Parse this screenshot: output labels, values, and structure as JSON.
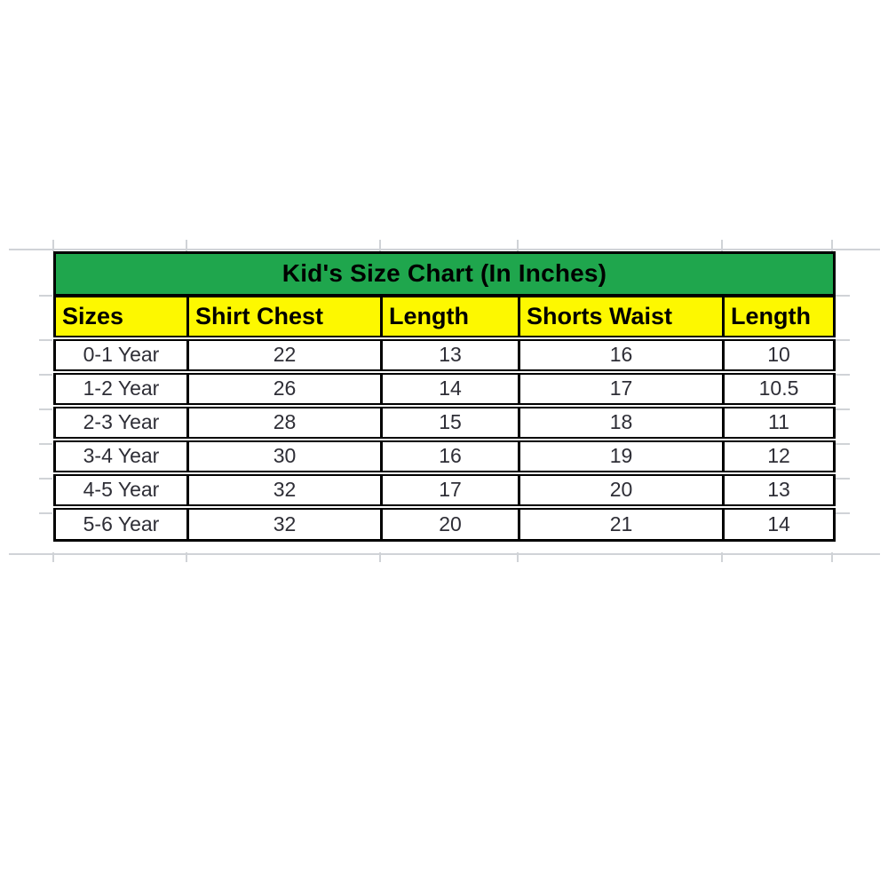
{
  "chart_data": {
    "type": "table",
    "title": "Kid's Size Chart (In Inches)",
    "columns": [
      "Sizes",
      "Shirt Chest",
      "Length",
      "Shorts Waist",
      "Length"
    ],
    "rows": [
      [
        "0-1 Year",
        "22",
        "13",
        "16",
        "10"
      ],
      [
        "1-2 Year",
        "26",
        "14",
        "17",
        "10.5"
      ],
      [
        "2-3 Year",
        "28",
        "15",
        "18",
        "11"
      ],
      [
        "3-4 Year",
        "30",
        "16",
        "19",
        "12"
      ],
      [
        "4-5 Year",
        "32",
        "17",
        "20",
        "13"
      ],
      [
        "5-6 Year",
        "32",
        "20",
        "21",
        "14"
      ]
    ]
  },
  "colors": {
    "title_bg": "#1fa64d",
    "header_bg": "#fdf800",
    "border": "#000000",
    "header_text": "#000000",
    "data_text": "#2e2e36",
    "gridline": "#d0d3d7",
    "canvas_bg": "#ffffff"
  }
}
